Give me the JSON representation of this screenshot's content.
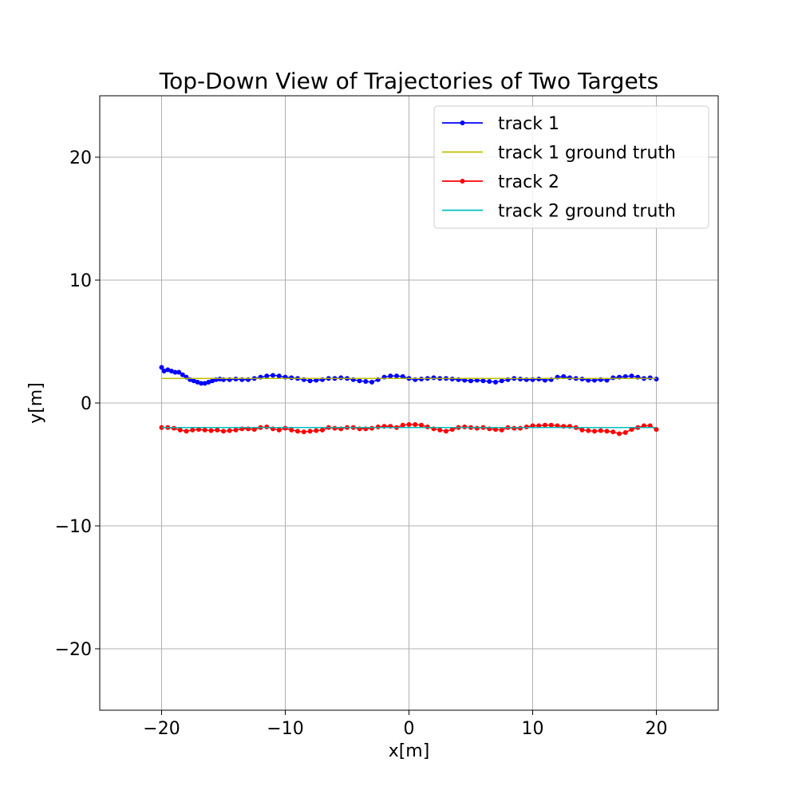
{
  "chart_data": {
    "type": "line",
    "title": "Top-Down View of Trajectories of Two Targets",
    "xlabel": "x[m]",
    "ylabel": "y[m]",
    "xlim": [
      -25,
      25
    ],
    "ylim": [
      -25,
      25
    ],
    "xticks": [
      -20,
      -10,
      0,
      10,
      20
    ],
    "yticks": [
      -20,
      -10,
      0,
      10,
      20
    ],
    "grid": true,
    "legend_position": "top-right",
    "series": [
      {
        "name": "track 1",
        "style": "line-with-markers",
        "color": "#0000ff",
        "x": [
          -20,
          -19.8,
          -19.5,
          -19.2,
          -18.9,
          -18.6,
          -18.3,
          -18,
          -17.7,
          -17.4,
          -17.1,
          -16.8,
          -16.5,
          -16.2,
          -15.9,
          -15.6,
          -15.3,
          -15,
          -14.5,
          -14,
          -13.5,
          -13,
          -12.5,
          -12,
          -11.5,
          -11,
          -10.5,
          -10,
          -9.5,
          -9,
          -8.5,
          -8,
          -7.5,
          -7,
          -6.5,
          -6,
          -5.5,
          -5,
          -4.5,
          -4,
          -3.5,
          -3,
          -2.5,
          -2,
          -1.5,
          -1,
          -0.5,
          0,
          0.5,
          1,
          1.5,
          2,
          2.5,
          3,
          3.5,
          4,
          4.5,
          5,
          5.5,
          6,
          6.5,
          7,
          7.5,
          8,
          8.5,
          9,
          9.5,
          10,
          10.5,
          11,
          11.5,
          12,
          12.5,
          13,
          13.5,
          14,
          14.5,
          15,
          15.5,
          16,
          16.5,
          17,
          17.5,
          18,
          18.5,
          19,
          19.5,
          20
        ],
        "y": [
          2.9,
          2.6,
          2.7,
          2.6,
          2.5,
          2.5,
          2.3,
          2.1,
          1.9,
          1.8,
          1.7,
          1.6,
          1.6,
          1.7,
          1.8,
          1.9,
          1.95,
          1.9,
          1.9,
          1.95,
          1.9,
          1.9,
          2.0,
          2.1,
          2.2,
          2.25,
          2.2,
          2.1,
          2.05,
          2.0,
          1.9,
          1.8,
          1.85,
          1.9,
          2.0,
          2.0,
          2.05,
          2.0,
          1.9,
          1.8,
          1.75,
          1.7,
          1.9,
          2.1,
          2.2,
          2.2,
          2.15,
          2.0,
          1.9,
          1.95,
          2.0,
          2.05,
          2.0,
          2.0,
          1.95,
          1.9,
          1.85,
          1.8,
          1.85,
          1.8,
          1.75,
          1.7,
          1.8,
          1.9,
          2.0,
          1.95,
          1.9,
          1.9,
          1.95,
          1.85,
          1.9,
          2.1,
          2.15,
          2.05,
          2.0,
          1.95,
          1.85,
          1.85,
          1.9,
          1.85,
          2.05,
          2.1,
          2.15,
          2.2,
          2.1,
          2.0,
          2.05,
          1.95
        ]
      },
      {
        "name": "track 1 ground truth",
        "style": "line",
        "color": "#bfbf00",
        "x": [
          -20,
          20
        ],
        "y": [
          2,
          2
        ]
      },
      {
        "name": "track 2",
        "style": "line-with-markers",
        "color": "#ff0000",
        "x": [
          -20,
          -19.5,
          -19,
          -18.5,
          -18,
          -17.5,
          -17,
          -16.5,
          -16,
          -15.5,
          -15,
          -14.5,
          -14,
          -13.5,
          -13,
          -12.5,
          -12,
          -11.5,
          -11,
          -10.5,
          -10,
          -9.5,
          -9,
          -8.5,
          -8,
          -7.5,
          -7,
          -6.5,
          -6,
          -5.5,
          -5,
          -4.5,
          -4,
          -3.5,
          -3,
          -2.5,
          -2,
          -1.5,
          -1,
          -0.5,
          0,
          0.5,
          1,
          1.5,
          2,
          2.5,
          3,
          3.5,
          4,
          4.5,
          5,
          5.5,
          6,
          6.5,
          7,
          7.5,
          8,
          8.5,
          9,
          9.5,
          10,
          10.5,
          11,
          11.5,
          12,
          12.5,
          13,
          13.5,
          14,
          14.5,
          15,
          15.5,
          16,
          16.5,
          17,
          17.5,
          18,
          18.5,
          19,
          19.5,
          20
        ],
        "y": [
          -2.0,
          -2.0,
          -2.05,
          -2.2,
          -2.3,
          -2.2,
          -2.15,
          -2.2,
          -2.25,
          -2.2,
          -2.3,
          -2.25,
          -2.2,
          -2.1,
          -2.1,
          -2.15,
          -2.0,
          -1.95,
          -2.1,
          -2.2,
          -2.05,
          -2.2,
          -2.3,
          -2.35,
          -2.3,
          -2.25,
          -2.2,
          -2.0,
          -2.05,
          -2.1,
          -2.0,
          -2.0,
          -2.1,
          -2.1,
          -2.05,
          -1.95,
          -1.9,
          -1.9,
          -2.0,
          -1.8,
          -1.75,
          -1.75,
          -1.8,
          -1.95,
          -2.1,
          -2.2,
          -2.3,
          -2.15,
          -2.0,
          -1.95,
          -2.0,
          -2.05,
          -2.0,
          -2.1,
          -2.15,
          -2.2,
          -2.0,
          -2.05,
          -2.05,
          -1.95,
          -1.85,
          -1.85,
          -1.8,
          -1.8,
          -1.85,
          -1.9,
          -1.9,
          -2.0,
          -2.2,
          -2.25,
          -2.3,
          -2.25,
          -2.3,
          -2.35,
          -2.5,
          -2.4,
          -2.15,
          -2.0,
          -1.85,
          -1.85,
          -2.15
        ]
      },
      {
        "name": "track 2 ground truth",
        "style": "line",
        "color": "#00bfbf",
        "x": [
          -20,
          20
        ],
        "y": [
          -2,
          -2
        ]
      }
    ]
  }
}
